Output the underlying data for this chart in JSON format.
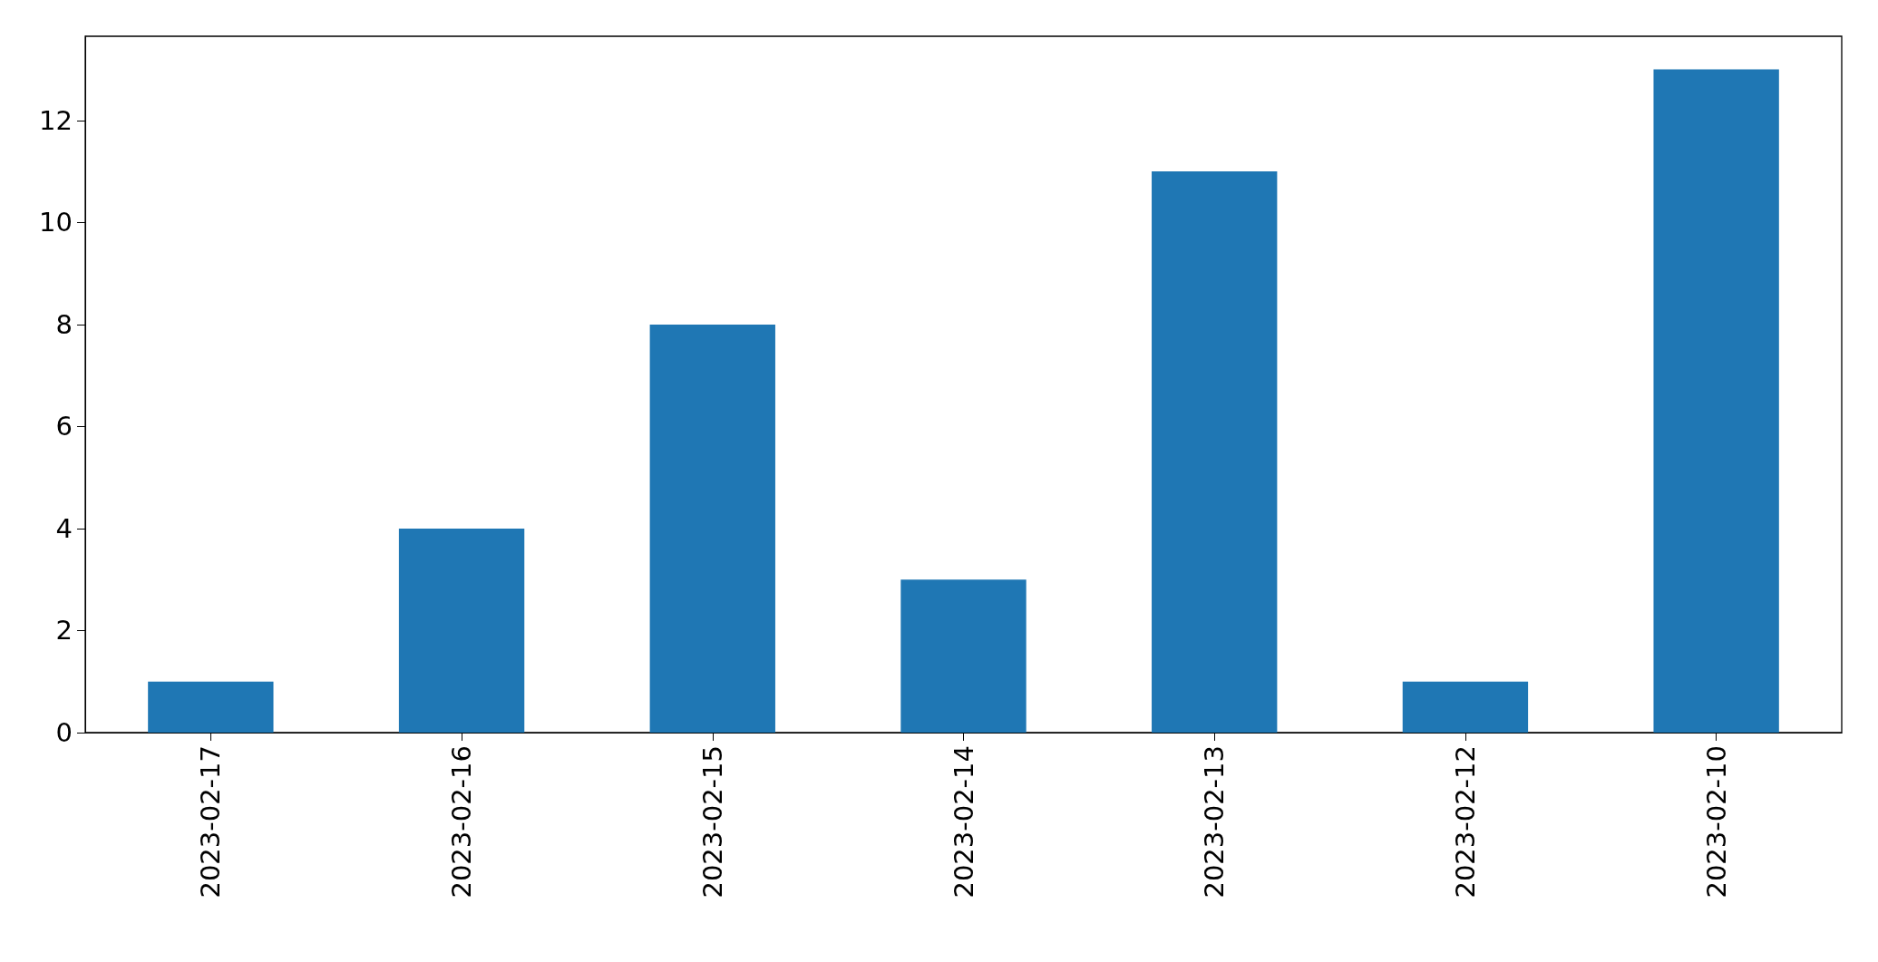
{
  "chart_data": {
    "type": "bar",
    "categories": [
      "2023-02-17",
      "2023-02-16",
      "2023-02-15",
      "2023-02-14",
      "2023-02-13",
      "2023-02-12",
      "2023-02-10"
    ],
    "values": [
      1,
      4,
      8,
      3,
      11,
      1,
      13
    ],
    "color": "#1f77b4",
    "ylim": [
      0,
      13.65
    ],
    "yticks": [
      0,
      2,
      4,
      6,
      8,
      10,
      12
    ]
  }
}
